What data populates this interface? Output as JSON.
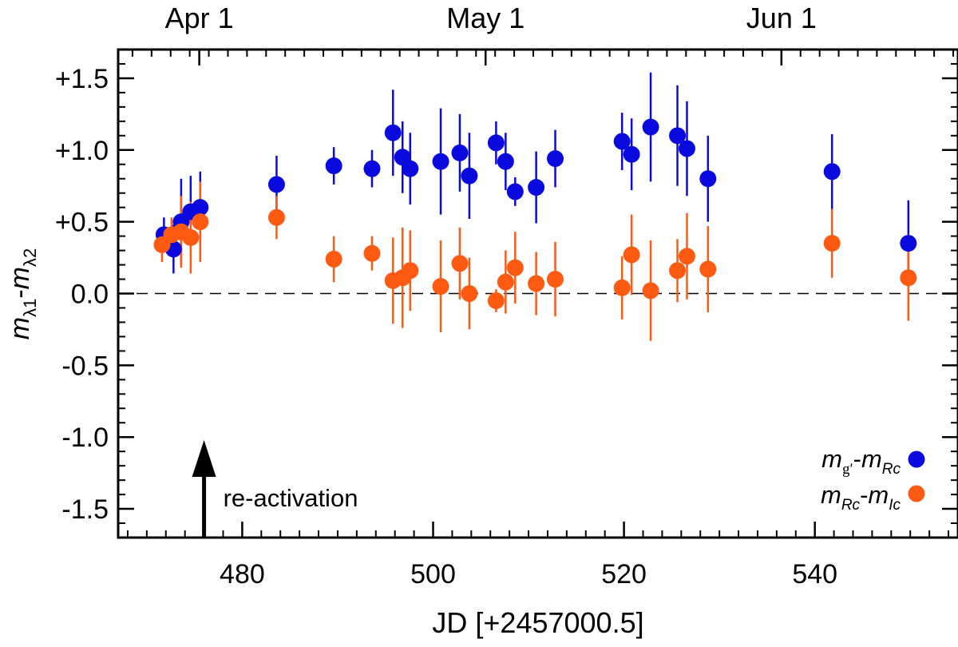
{
  "colors": {
    "series1": "#0a0adf",
    "series2": "#ff5a12",
    "axis": "#000000"
  },
  "chart_data": {
    "type": "scatter",
    "xlabel": "JD [+2457000.5]",
    "xlim": [
      467,
      555
    ],
    "ylim": [
      -1.7,
      1.7
    ],
    "x_ticks": [
      480,
      500,
      520,
      540
    ],
    "x_tick_labels": [
      "480",
      "500",
      "520",
      "540"
    ],
    "y_ticks": [
      1.5,
      1.0,
      0.5,
      0.0,
      -0.5,
      -1.0,
      -1.5
    ],
    "y_tick_labels": [
      "+1.5",
      "+1.0",
      "+0.5",
      "0.0",
      "-0.5",
      "-1.0",
      "-1.5"
    ],
    "top_ticks": [
      {
        "x": 475.5,
        "label": "Apr 1"
      },
      {
        "x": 505.5,
        "label": "May 1"
      },
      {
        "x": 536.5,
        "label": "Jun 1"
      }
    ],
    "reference_line": {
      "y": 0.0,
      "style": "dashed"
    },
    "annotation": {
      "text": "re-activation",
      "x": 476
    },
    "ylabel": {
      "m": "m",
      "sub1": "λ1",
      "dash": "-",
      "sub2": "λ2"
    },
    "legend": {
      "position": "bottom-right",
      "entries": [
        {
          "m1": "m",
          "s1": "g′",
          "dash": "-",
          "m2": "m",
          "s2": "Rc"
        },
        {
          "m1": "m",
          "s1": "Rc",
          "dash": "-",
          "m2": "m",
          "s2": "Ic"
        }
      ]
    },
    "series": [
      {
        "name": "mg'-mRc",
        "points": [
          {
            "x": 471.8,
            "y": 0.41,
            "err": 0.12
          },
          {
            "x": 472.8,
            "y": 0.31,
            "err": 0.17
          },
          {
            "x": 473.6,
            "y": 0.5,
            "err": 0.3
          },
          {
            "x": 474.6,
            "y": 0.57,
            "err": 0.25
          },
          {
            "x": 475.6,
            "y": 0.6,
            "err": 0.25
          },
          {
            "x": 483.6,
            "y": 0.76,
            "err": 0.2
          },
          {
            "x": 489.6,
            "y": 0.89,
            "err": 0.13
          },
          {
            "x": 493.6,
            "y": 0.87,
            "err": 0.13
          },
          {
            "x": 495.8,
            "y": 1.12,
            "err": 0.3
          },
          {
            "x": 496.8,
            "y": 0.95,
            "err": 0.25
          },
          {
            "x": 497.6,
            "y": 0.87,
            "err": 0.25
          },
          {
            "x": 500.8,
            "y": 0.92,
            "err": 0.37
          },
          {
            "x": 502.8,
            "y": 0.98,
            "err": 0.27
          },
          {
            "x": 503.8,
            "y": 0.82,
            "err": 0.3
          },
          {
            "x": 506.6,
            "y": 1.05,
            "err": 0.15
          },
          {
            "x": 507.6,
            "y": 0.92,
            "err": 0.2
          },
          {
            "x": 508.6,
            "y": 0.71,
            "err": 0.1
          },
          {
            "x": 510.8,
            "y": 0.74,
            "err": 0.25
          },
          {
            "x": 512.8,
            "y": 0.94,
            "err": 0.2
          },
          {
            "x": 519.8,
            "y": 1.06,
            "err": 0.2
          },
          {
            "x": 520.8,
            "y": 0.97,
            "err": 0.25
          },
          {
            "x": 522.8,
            "y": 1.16,
            "err": 0.38
          },
          {
            "x": 525.6,
            "y": 1.1,
            "err": 0.35
          },
          {
            "x": 526.6,
            "y": 1.01,
            "err": 0.33
          },
          {
            "x": 528.8,
            "y": 0.8,
            "err": 0.3
          },
          {
            "x": 541.8,
            "y": 0.85,
            "err": 0.26
          },
          {
            "x": 549.8,
            "y": 0.35,
            "err": 0.3
          }
        ]
      },
      {
        "name": "mRc-mIc",
        "points": [
          {
            "x": 471.6,
            "y": 0.34,
            "err": 0.12
          },
          {
            "x": 472.6,
            "y": 0.41,
            "err": 0.12
          },
          {
            "x": 473.6,
            "y": 0.43,
            "err": 0.25
          },
          {
            "x": 474.6,
            "y": 0.39,
            "err": 0.25
          },
          {
            "x": 475.6,
            "y": 0.5,
            "err": 0.28
          },
          {
            "x": 483.6,
            "y": 0.53,
            "err": 0.15
          },
          {
            "x": 489.6,
            "y": 0.24,
            "err": 0.16
          },
          {
            "x": 493.6,
            "y": 0.28,
            "err": 0.12
          },
          {
            "x": 495.8,
            "y": 0.09,
            "err": 0.3
          },
          {
            "x": 496.8,
            "y": 0.11,
            "err": 0.35
          },
          {
            "x": 497.6,
            "y": 0.16,
            "err": 0.28
          },
          {
            "x": 500.8,
            "y": 0.05,
            "err": 0.32
          },
          {
            "x": 502.8,
            "y": 0.21,
            "err": 0.25
          },
          {
            "x": 503.8,
            "y": 0.0,
            "err": 0.25
          },
          {
            "x": 506.6,
            "y": -0.05,
            "err": 0.08
          },
          {
            "x": 507.6,
            "y": 0.08,
            "err": 0.22
          },
          {
            "x": 508.6,
            "y": 0.18,
            "err": 0.25
          },
          {
            "x": 510.8,
            "y": 0.07,
            "err": 0.22
          },
          {
            "x": 512.8,
            "y": 0.1,
            "err": 0.26
          },
          {
            "x": 519.8,
            "y": 0.04,
            "err": 0.22
          },
          {
            "x": 520.8,
            "y": 0.27,
            "err": 0.28
          },
          {
            "x": 522.8,
            "y": 0.02,
            "err": 0.35
          },
          {
            "x": 525.6,
            "y": 0.16,
            "err": 0.22
          },
          {
            "x": 526.6,
            "y": 0.26,
            "err": 0.3
          },
          {
            "x": 528.8,
            "y": 0.17,
            "err": 0.3
          },
          {
            "x": 541.8,
            "y": 0.35,
            "err": 0.24
          },
          {
            "x": 549.8,
            "y": 0.11,
            "err": 0.3
          }
        ]
      }
    ]
  }
}
